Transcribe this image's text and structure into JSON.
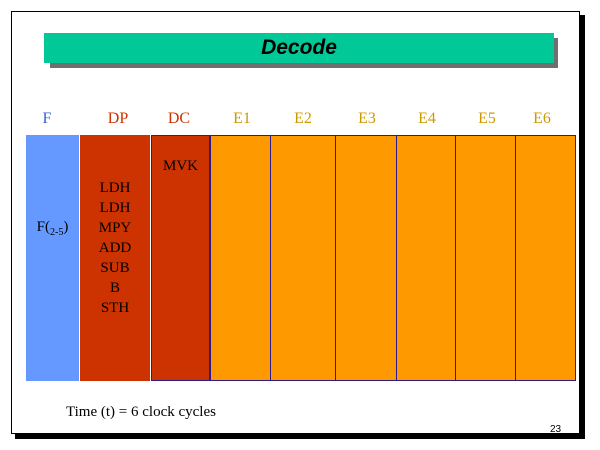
{
  "title": "Decode",
  "stages": [
    {
      "label": "F",
      "color": "#3366cc"
    },
    {
      "label": "DP",
      "color": "#cc3300"
    },
    {
      "label": "DC",
      "color": "#cc3300"
    },
    {
      "label": "E1",
      "color": "#cc9900"
    },
    {
      "label": "E2",
      "color": "#cc9900"
    },
    {
      "label": "E3",
      "color": "#cc9900"
    },
    {
      "label": "E4",
      "color": "#cc9900"
    },
    {
      "label": "E5",
      "color": "#cc9900"
    },
    {
      "label": "E6",
      "color": "#cc9900"
    }
  ],
  "f_cell": {
    "main": "F",
    "paren_open": "(",
    "subscript": "2-5",
    "paren_close": ")"
  },
  "dc_cell": "MVK",
  "dp_instructions": [
    "LDH",
    "LDH",
    "MPY",
    "ADD",
    "SUB",
    "B",
    "STH"
  ],
  "time_note": "Time (t) = 6 clock cycles",
  "page_number": "23",
  "colors": {
    "title_bar": "#00c896",
    "fetch": "#6699ff",
    "dispatch": "#cc3300",
    "decode": "#cc3300",
    "execute": "#ff9900",
    "border": "#2b1b8f"
  }
}
